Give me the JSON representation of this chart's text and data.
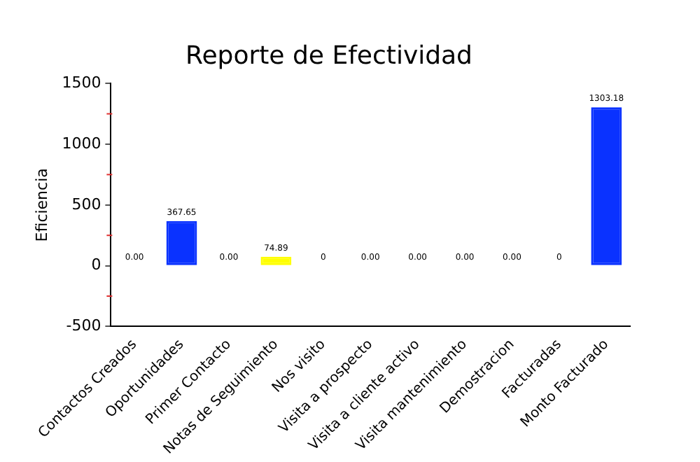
{
  "chart_data": {
    "type": "bar",
    "title": "Reporte de Efectividad",
    "ylabel": "Eficiencia",
    "categories": [
      "Contactos Creados",
      "Oportunidades",
      "Primer Contacto",
      "Notas de Seguimiento",
      "Nos visito",
      "Visita a prospecto",
      "Visita a cliente activo",
      "Visita mantenimiento",
      "Demostracion",
      "Facturadas",
      "Monto Facturado"
    ],
    "values": [
      0,
      367.65,
      0,
      74.89,
      0,
      0,
      0,
      0,
      0,
      0,
      1303.18
    ],
    "colors": [
      "#f08080",
      "#0a32ff",
      "#f08080",
      "#ffff00",
      "#f08080",
      "#f08080",
      "#f08080",
      "#f08080",
      "#f08080",
      "#f08080",
      "#0a32ff"
    ],
    "value_labels": [
      "0.00",
      "367.65",
      "0.00",
      "74.89",
      "0",
      "0.00",
      "0.00",
      "0.00",
      "0.00",
      "0",
      "1303.18"
    ],
    "ylim": [
      -500,
      1500
    ],
    "yticks": [
      -500,
      {
        "value": -250,
        "label": null
      },
      0,
      {
        "value": 250,
        "label": null
      },
      500,
      {
        "value": 750,
        "label": null
      },
      1000,
      {
        "value": 1250,
        "label": null
      },
      1500
    ],
    "grid": false,
    "legend": false
  }
}
